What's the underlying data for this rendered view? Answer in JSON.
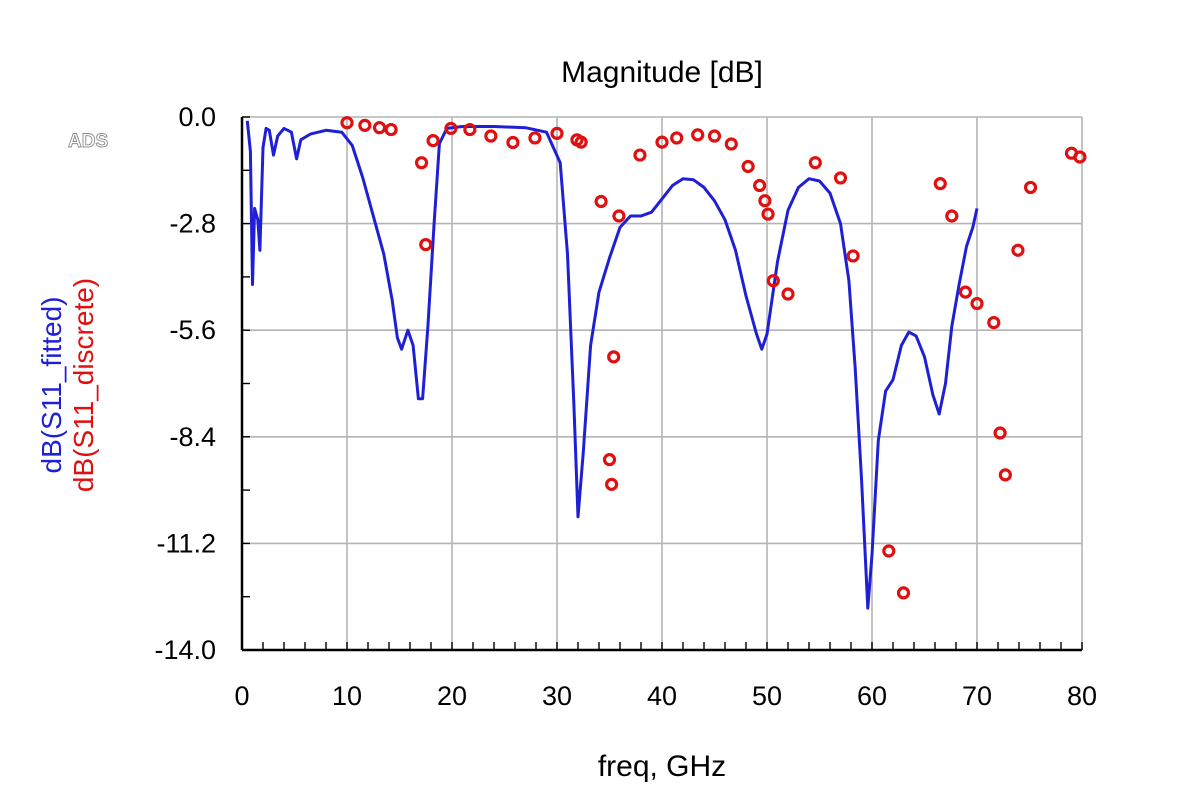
{
  "watermark": "ADS",
  "chart_data": {
    "type": "line",
    "title": "Magnitude [dB]",
    "xlabel": "freq, GHz",
    "xlim": [
      0,
      80
    ],
    "ylim": [
      -14.0,
      0.0
    ],
    "x_ticks": [
      "0",
      "10",
      "20",
      "30",
      "40",
      "50",
      "60",
      "70",
      "80"
    ],
    "y_ticks": [
      "0.0",
      "-2.8",
      "-5.6",
      "-8.4",
      "-11.2",
      "-14.0"
    ],
    "grid": true,
    "colors": {
      "fitted": "#1f1fd6",
      "discrete": "#e01010"
    },
    "series": [
      {
        "name": "dB(S11_fitted)",
        "style": "line",
        "points": [
          [
            0.5,
            -0.1
          ],
          [
            0.8,
            -0.9
          ],
          [
            1.0,
            -4.4
          ],
          [
            1.2,
            -2.4
          ],
          [
            1.5,
            -2.7
          ],
          [
            1.7,
            -3.5
          ],
          [
            2.0,
            -0.8
          ],
          [
            2.3,
            -0.3
          ],
          [
            2.6,
            -0.35
          ],
          [
            3.0,
            -1.0
          ],
          [
            3.4,
            -0.5
          ],
          [
            4.0,
            -0.3
          ],
          [
            4.7,
            -0.4
          ],
          [
            5.2,
            -1.1
          ],
          [
            5.6,
            -0.6
          ],
          [
            6.5,
            -0.45
          ],
          [
            8.0,
            -0.35
          ],
          [
            9.5,
            -0.4
          ],
          [
            10.5,
            -0.75
          ],
          [
            11.5,
            -1.6
          ],
          [
            12.5,
            -2.6
          ],
          [
            13.5,
            -3.6
          ],
          [
            14.3,
            -4.8
          ],
          [
            14.8,
            -5.8
          ],
          [
            15.2,
            -6.1
          ],
          [
            15.8,
            -5.6
          ],
          [
            16.3,
            -6.0
          ],
          [
            16.8,
            -7.4
          ],
          [
            17.2,
            -7.4
          ],
          [
            17.7,
            -5.5
          ],
          [
            18.3,
            -2.8
          ],
          [
            18.8,
            -0.7
          ],
          [
            19.5,
            -0.3
          ],
          [
            21.0,
            -0.25
          ],
          [
            24.0,
            -0.25
          ],
          [
            27.0,
            -0.28
          ],
          [
            29.0,
            -0.4
          ],
          [
            30.3,
            -1.2
          ],
          [
            31.0,
            -3.6
          ],
          [
            31.6,
            -7.5
          ],
          [
            32.0,
            -10.5
          ],
          [
            32.5,
            -8.8
          ],
          [
            33.2,
            -6.0
          ],
          [
            34.0,
            -4.6
          ],
          [
            35.0,
            -3.7
          ],
          [
            36.0,
            -2.9
          ],
          [
            37.0,
            -2.6
          ],
          [
            38.0,
            -2.6
          ],
          [
            39.0,
            -2.5
          ],
          [
            40.0,
            -2.15
          ],
          [
            41.0,
            -1.8
          ],
          [
            42.0,
            -1.62
          ],
          [
            43.0,
            -1.65
          ],
          [
            44.0,
            -1.85
          ],
          [
            45.0,
            -2.2
          ],
          [
            46.0,
            -2.7
          ],
          [
            47.0,
            -3.5
          ],
          [
            48.0,
            -4.7
          ],
          [
            49.0,
            -5.7
          ],
          [
            49.5,
            -6.1
          ],
          [
            50.0,
            -5.7
          ],
          [
            51.0,
            -3.8
          ],
          [
            52.0,
            -2.45
          ],
          [
            53.0,
            -1.85
          ],
          [
            54.0,
            -1.62
          ],
          [
            55.0,
            -1.68
          ],
          [
            56.0,
            -2.0
          ],
          [
            57.0,
            -2.8
          ],
          [
            57.8,
            -4.3
          ],
          [
            58.4,
            -6.6
          ],
          [
            59.0,
            -9.5
          ],
          [
            59.6,
            -12.9
          ],
          [
            60.0,
            -11.5
          ],
          [
            60.6,
            -8.5
          ],
          [
            61.3,
            -7.2
          ],
          [
            62.0,
            -6.9
          ],
          [
            62.8,
            -6.0
          ],
          [
            63.5,
            -5.65
          ],
          [
            64.2,
            -5.75
          ],
          [
            65.0,
            -6.3
          ],
          [
            65.8,
            -7.3
          ],
          [
            66.4,
            -7.8
          ],
          [
            67.0,
            -7.0
          ],
          [
            67.6,
            -5.5
          ],
          [
            68.3,
            -4.4
          ],
          [
            69.0,
            -3.4
          ],
          [
            69.6,
            -2.9
          ],
          [
            70.0,
            -2.4
          ]
        ]
      },
      {
        "name": "dB(S11_discrete)",
        "style": "markers",
        "points": [
          [
            10.0,
            -0.15
          ],
          [
            11.7,
            -0.22
          ],
          [
            13.1,
            -0.28
          ],
          [
            14.2,
            -0.33
          ],
          [
            17.1,
            -1.2
          ],
          [
            17.5,
            -3.35
          ],
          [
            18.2,
            -0.62
          ],
          [
            19.9,
            -0.3
          ],
          [
            21.7,
            -0.33
          ],
          [
            23.7,
            -0.5
          ],
          [
            25.8,
            -0.67
          ],
          [
            27.9,
            -0.55
          ],
          [
            30.0,
            -0.43
          ],
          [
            31.9,
            -0.6
          ],
          [
            32.3,
            -0.66
          ],
          [
            34.2,
            -2.22
          ],
          [
            35.0,
            -9.0
          ],
          [
            35.2,
            -9.65
          ],
          [
            35.4,
            -6.3
          ],
          [
            35.9,
            -2.6
          ],
          [
            37.9,
            -1.0
          ],
          [
            40.0,
            -0.66
          ],
          [
            41.4,
            -0.55
          ],
          [
            43.4,
            -0.47
          ],
          [
            45.0,
            -0.5
          ],
          [
            46.6,
            -0.71
          ],
          [
            48.2,
            -1.3
          ],
          [
            49.3,
            -1.8
          ],
          [
            49.8,
            -2.2
          ],
          [
            50.1,
            -2.55
          ],
          [
            50.6,
            -4.3
          ],
          [
            52.0,
            -4.65
          ],
          [
            54.6,
            -1.2
          ],
          [
            57.0,
            -1.6
          ],
          [
            58.2,
            -3.65
          ],
          [
            61.6,
            -11.4
          ],
          [
            63.0,
            -12.5
          ],
          [
            66.5,
            -1.75
          ],
          [
            67.6,
            -2.6
          ],
          [
            68.9,
            -4.6
          ],
          [
            70.0,
            -4.9
          ],
          [
            71.6,
            -5.4
          ],
          [
            72.2,
            -8.3
          ],
          [
            72.7,
            -9.4
          ],
          [
            73.9,
            -3.5
          ],
          [
            75.1,
            -1.85
          ],
          [
            79.0,
            -0.95
          ],
          [
            79.8,
            -1.05
          ]
        ]
      }
    ]
  }
}
